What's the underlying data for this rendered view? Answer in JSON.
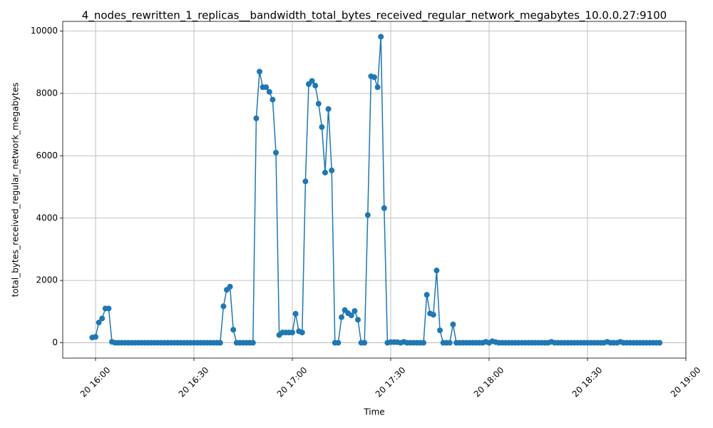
{
  "chart_data": {
    "type": "line",
    "title": "4_nodes_rewritten_1_replicas__bandwidth_total_bytes_received_regular_network_megabytes_10.0.0.27:9100",
    "x_label": "Time",
    "y_label": "total_bytes_received_regular_network_megabytes",
    "x": [
      "20 15:59",
      "20 16:00",
      "20 16:01",
      "20 16:02",
      "20 16:03",
      "20 16:04",
      "20 16:05",
      "20 16:06",
      "20 16:07",
      "20 16:08",
      "20 16:09",
      "20 16:10",
      "20 16:11",
      "20 16:12",
      "20 16:13",
      "20 16:14",
      "20 16:15",
      "20 16:16",
      "20 16:17",
      "20 16:18",
      "20 16:19",
      "20 16:20",
      "20 16:21",
      "20 16:22",
      "20 16:23",
      "20 16:24",
      "20 16:25",
      "20 16:26",
      "20 16:27",
      "20 16:28",
      "20 16:29",
      "20 16:30",
      "20 16:31",
      "20 16:32",
      "20 16:33",
      "20 16:34",
      "20 16:35",
      "20 16:36",
      "20 16:37",
      "20 16:38",
      "20 16:39",
      "20 16:40",
      "20 16:41",
      "20 16:42",
      "20 16:43",
      "20 16:44",
      "20 16:45",
      "20 16:46",
      "20 16:47",
      "20 16:48",
      "20 16:49",
      "20 16:50",
      "20 16:51",
      "20 16:52",
      "20 16:53",
      "20 16:54",
      "20 16:55",
      "20 16:56",
      "20 16:57",
      "20 16:58",
      "20 16:59",
      "20 17:00",
      "20 17:01",
      "20 17:02",
      "20 17:03",
      "20 17:04",
      "20 17:05",
      "20 17:06",
      "20 17:07",
      "20 17:08",
      "20 17:09",
      "20 17:10",
      "20 17:11",
      "20 17:12",
      "20 17:13",
      "20 17:14",
      "20 17:15",
      "20 17:16",
      "20 17:17",
      "20 17:18",
      "20 17:19",
      "20 17:20",
      "20 17:21",
      "20 17:22",
      "20 17:23",
      "20 17:24",
      "20 17:25",
      "20 17:26",
      "20 17:27",
      "20 17:28",
      "20 17:29",
      "20 17:30",
      "20 17:31",
      "20 17:32",
      "20 17:33",
      "20 17:34",
      "20 17:35",
      "20 17:36",
      "20 17:37",
      "20 17:38",
      "20 17:39",
      "20 17:40",
      "20 17:41",
      "20 17:42",
      "20 17:43",
      "20 17:44",
      "20 17:45",
      "20 17:46",
      "20 17:47",
      "20 17:48",
      "20 17:49",
      "20 17:50",
      "20 17:51",
      "20 17:52",
      "20 17:53",
      "20 17:54",
      "20 17:55",
      "20 17:56",
      "20 17:57",
      "20 17:58",
      "20 17:59",
      "20 18:00",
      "20 18:01",
      "20 18:02",
      "20 18:03",
      "20 18:04",
      "20 18:05",
      "20 18:06",
      "20 18:07",
      "20 18:08",
      "20 18:09",
      "20 18:10",
      "20 18:11",
      "20 18:12",
      "20 18:13",
      "20 18:14",
      "20 18:15",
      "20 18:16",
      "20 18:17",
      "20 18:18",
      "20 18:19",
      "20 18:20",
      "20 18:21",
      "20 18:22",
      "20 18:23",
      "20 18:24",
      "20 18:25",
      "20 18:26",
      "20 18:27",
      "20 18:28",
      "20 18:29",
      "20 18:30",
      "20 18:31",
      "20 18:32",
      "20 18:33",
      "20 18:34",
      "20 18:35",
      "20 18:36",
      "20 18:37",
      "20 18:38",
      "20 18:39",
      "20 18:40",
      "20 18:41",
      "20 18:42",
      "20 18:43",
      "20 18:44",
      "20 18:45",
      "20 18:46",
      "20 18:47",
      "20 18:48",
      "20 18:49",
      "20 18:50",
      "20 18:51",
      "20 18:52"
    ],
    "series": [
      {
        "color": "#1f77b4",
        "values": [
          170,
          190,
          650,
          780,
          1100,
          1100,
          30,
          0,
          0,
          0,
          0,
          0,
          0,
          0,
          0,
          0,
          0,
          0,
          0,
          0,
          0,
          0,
          0,
          0,
          0,
          0,
          0,
          0,
          0,
          0,
          0,
          0,
          0,
          0,
          0,
          0,
          0,
          0,
          0,
          0,
          1170,
          1700,
          1800,
          420,
          0,
          0,
          0,
          0,
          0,
          0,
          7200,
          8700,
          8200,
          8200,
          8050,
          7800,
          6100,
          250,
          330,
          330,
          330,
          330,
          930,
          370,
          330,
          5180,
          8300,
          8400,
          8250,
          7670,
          6920,
          5460,
          7500,
          5530,
          0,
          0,
          820,
          1050,
          950,
          880,
          1020,
          740,
          0,
          0,
          4100,
          8550,
          8520,
          8200,
          9820,
          4320,
          0,
          20,
          20,
          20,
          0,
          30,
          0,
          0,
          0,
          0,
          0,
          0,
          1540,
          940,
          900,
          2320,
          400,
          0,
          0,
          0,
          590,
          0,
          0,
          0,
          0,
          0,
          0,
          0,
          0,
          0,
          30,
          0,
          50,
          20,
          0,
          0,
          0,
          0,
          0,
          0,
          0,
          0,
          0,
          0,
          0,
          0,
          0,
          0,
          0,
          0,
          30,
          0,
          0,
          0,
          0,
          0,
          0,
          0,
          0,
          0,
          0,
          0,
          0,
          0,
          0,
          0,
          0,
          30,
          0,
          0,
          0,
          30,
          0,
          0,
          0,
          0,
          0,
          0,
          0,
          0,
          0,
          0,
          0,
          0
        ]
      }
    ],
    "xlim": [
      "20 15:50",
      "20 19:00"
    ],
    "xticks": [
      "20 16:00",
      "20 16:30",
      "20 17:00",
      "20 17:30",
      "20 18:00",
      "20 18:30",
      "20 19:00"
    ],
    "ylim": [
      -491,
      10311
    ],
    "yticks": [
      0,
      2000,
      4000,
      6000,
      8000,
      10000
    ],
    "grid": true,
    "markers": true
  }
}
